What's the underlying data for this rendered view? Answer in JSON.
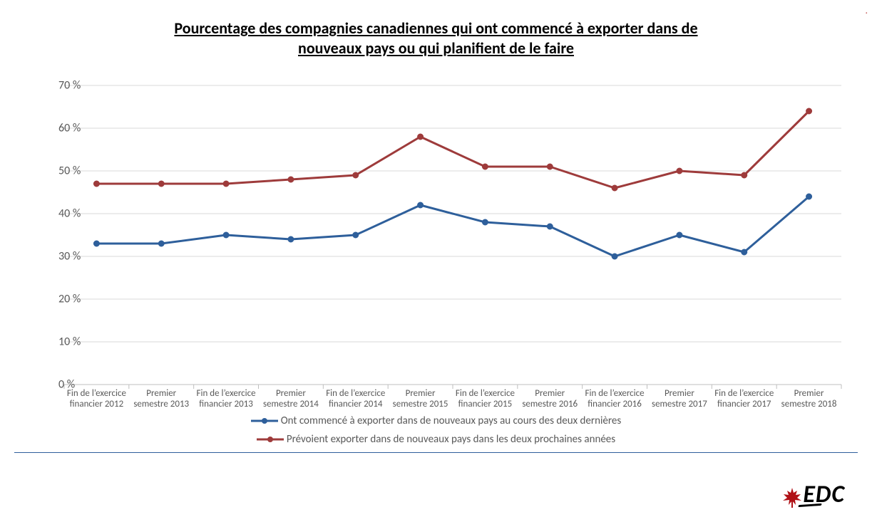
{
  "chart": {
    "type": "line",
    "title_line1": "Pourcentage des compagnies canadiennes qui ont commencé à exporter dans de",
    "title_line2": "nouveaux pays ou qui planifient de le faire",
    "title_fontsize": 22,
    "title_fontweight": 700,
    "background_color": "#ffffff",
    "grid_color": "#d9d9d9",
    "axis_color": "#bfbfbf",
    "tick_label_color": "#595959",
    "label_fontsize": 13,
    "ylim": [
      0,
      70
    ],
    "ytick_step": 10,
    "y_suffix": " %",
    "line_width": 3,
    "marker_size": 8,
    "marker_style": "circle",
    "categories": [
      "Fin de l’exercice financier 2012",
      "Premier semestre 2013",
      "Fin de l’exercice financier 2013",
      "Premier semestre 2014",
      "Fin de l’exercice financier 2014",
      "Premier semestre 2015",
      "Fin de l’exercice financier 2015",
      "Premier semestre 2016",
      "Fin de l’exercice financier 2016",
      "Premier semestre 2017",
      "Fin de l’exercice financier 2017",
      "Premier semestre 2018"
    ],
    "series": [
      {
        "name": "Ont commencé à exporter dans de nouveaux pays au cours des deux dernières",
        "color": "#2e5f9b",
        "values": [
          33,
          33,
          35,
          34,
          35,
          42,
          38,
          37,
          30,
          35,
          31,
          44
        ]
      },
      {
        "name": "Prévoient exporter dans de nouveaux pays dans les deux prochaines années",
        "color": "#9e3b3b",
        "values": [
          47,
          47,
          47,
          48,
          49,
          58,
          51,
          51,
          46,
          50,
          49,
          64
        ]
      }
    ]
  },
  "legend": {
    "item1": "Ont commencé à exporter dans de nouveaux pays au cours des deux dernières",
    "item2": "Prévoient exporter dans de nouveaux pays dans les deux prochaines années"
  },
  "logo": {
    "text": "EDC",
    "leaf_color": "#b01116"
  }
}
